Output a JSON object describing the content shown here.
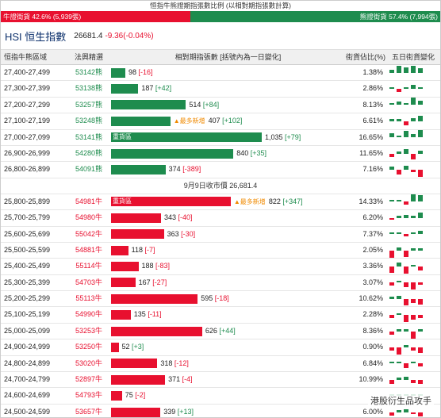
{
  "ratio": {
    "title": "恒指牛熊證期指張數比例 (以相對期指張數計算)",
    "bull_label": "牛證街貨 42.6% (5,939張)",
    "bear_label": "熊證街貨 57.4% (7,994張)",
    "bull_fraction": 0.426
  },
  "index": {
    "name": "HSI 恒生指數",
    "value": "26681.4",
    "change": "-9.36(-0.04%)"
  },
  "columns": {
    "range": "恒指牛熊區域",
    "code": "法興精選",
    "bar": "相對期指張數 [括號內為一日變化]",
    "pct": "街貨佔比(%)",
    "five": "五日街貨變化"
  },
  "separator": "9月9日收市價 26,681.4",
  "colors": {
    "bull": "#e8102f",
    "bear": "#1e8c4e",
    "new": "#f08a00"
  },
  "bear_rows": [
    {
      "range": "27,400-27,499",
      "code": "53142熊",
      "contracts": 98,
      "contracts_text": "98",
      "change": "[-16]",
      "pct": "1.38%",
      "tag": "",
      "heavy": ""
    },
    {
      "range": "27,300-27,399",
      "code": "53138熊",
      "contracts": 187,
      "contracts_text": "187",
      "change": "[+42]",
      "pct": "2.86%",
      "tag": "",
      "heavy": ""
    },
    {
      "range": "27,200-27,299",
      "code": "53257熊",
      "contracts": 514,
      "contracts_text": "514",
      "change": "[+84]",
      "pct": "8.13%",
      "tag": "",
      "heavy": ""
    },
    {
      "range": "27,100-27,199",
      "code": "53248熊",
      "contracts": 407,
      "contracts_text": "407",
      "change": "[+102]",
      "pct": "6.61%",
      "tag": "▲最多新增",
      "heavy": ""
    },
    {
      "range": "27,000-27,099",
      "code": "53141熊",
      "contracts": 1035,
      "contracts_text": "1,035",
      "change": "[+79]",
      "pct": "16.65%",
      "tag": "",
      "heavy": "重貨區"
    },
    {
      "range": "26,900-26,999",
      "code": "54280熊",
      "contracts": 840,
      "contracts_text": "840",
      "change": "[+35]",
      "pct": "11.65%",
      "tag": "",
      "heavy": ""
    },
    {
      "range": "26,800-26,899",
      "code": "54091熊",
      "contracts": 374,
      "contracts_text": "374",
      "change": "[-389]",
      "pct": "7.16%",
      "tag": "",
      "heavy": ""
    }
  ],
  "bull_rows": [
    {
      "range": "25,800-25,899",
      "code": "54981牛",
      "contracts": 822,
      "contracts_text": "822",
      "change": "[+347]",
      "pct": "14.33%",
      "tag": "▲最多新增",
      "heavy": "重貨區"
    },
    {
      "range": "25,700-25,799",
      "code": "54980牛",
      "contracts": 343,
      "contracts_text": "343",
      "change": "[-40]",
      "pct": "6.20%",
      "tag": "",
      "heavy": ""
    },
    {
      "range": "25,600-25,699",
      "code": "55042牛",
      "contracts": 363,
      "contracts_text": "363",
      "change": "[-30]",
      "pct": "7.37%",
      "tag": "",
      "heavy": ""
    },
    {
      "range": "25,500-25,599",
      "code": "54881牛",
      "contracts": 118,
      "contracts_text": "118",
      "change": "[-7]",
      "pct": "2.05%",
      "tag": "",
      "heavy": ""
    },
    {
      "range": "25,400-25,499",
      "code": "55114牛",
      "contracts": 188,
      "contracts_text": "188",
      "change": "[-83]",
      "pct": "3.36%",
      "tag": "",
      "heavy": ""
    },
    {
      "range": "25,300-25,399",
      "code": "54703牛",
      "contracts": 167,
      "contracts_text": "167",
      "change": "[-27]",
      "pct": "3.07%",
      "tag": "",
      "heavy": ""
    },
    {
      "range": "25,200-25,299",
      "code": "55113牛",
      "contracts": 595,
      "contracts_text": "595",
      "change": "[-18]",
      "pct": "10.62%",
      "tag": "",
      "heavy": ""
    },
    {
      "range": "25,100-25,199",
      "code": "54990牛",
      "contracts": 135,
      "contracts_text": "135",
      "change": "[-11]",
      "pct": "2.28%",
      "tag": "",
      "heavy": ""
    },
    {
      "range": "25,000-25,099",
      "code": "53253牛",
      "contracts": 626,
      "contracts_text": "626",
      "change": "[+44]",
      "pct": "8.36%",
      "tag": "",
      "heavy": ""
    },
    {
      "range": "24,900-24,999",
      "code": "53250牛",
      "contracts": 52,
      "contracts_text": "52",
      "change": "[+3]",
      "pct": "0.90%",
      "tag": "",
      "heavy": ""
    },
    {
      "range": "24,800-24,899",
      "code": "53020牛",
      "contracts": 318,
      "contracts_text": "318",
      "change": "[-12]",
      "pct": "6.84%",
      "tag": "",
      "heavy": ""
    },
    {
      "range": "24,700-24,799",
      "code": "52897牛",
      "contracts": 371,
      "contracts_text": "371",
      "change": "[-4]",
      "pct": "10.99%",
      "tag": "",
      "heavy": ""
    },
    {
      "range": "24,600-24,699",
      "code": "54793牛",
      "contracts": 75,
      "contracts_text": "75",
      "change": "[-2]",
      "pct": "",
      "tag": "",
      "heavy": ""
    },
    {
      "range": "24,500-24,599",
      "code": "53657牛",
      "contracts": 339,
      "contracts_text": "339",
      "change": "[+13]",
      "pct": "6.00%",
      "tag": "",
      "heavy": ""
    }
  ],
  "five_day": {
    "bear": [
      [
        2,
        6,
        4,
        5,
        3
      ],
      [
        1,
        -2,
        1,
        3,
        1
      ],
      [
        1,
        2,
        1,
        6,
        3
      ],
      [
        1,
        1,
        -3,
        2,
        4
      ],
      [
        3,
        1,
        5,
        2,
        6
      ],
      [
        -2,
        1,
        3,
        -4,
        2
      ],
      [
        2,
        -3,
        3,
        -1,
        -5
      ]
    ],
    "bull": [
      [
        1,
        1,
        -2,
        6,
        5
      ],
      [
        -1,
        1,
        2,
        1,
        4
      ],
      [
        1,
        1,
        -1,
        1,
        2
      ],
      [
        -7,
        2,
        -5,
        1,
        1
      ],
      [
        -5,
        3,
        -6,
        1,
        -3
      ],
      [
        -2,
        1,
        -3,
        -6,
        -1
      ],
      [
        1,
        2,
        -5,
        -3,
        -4
      ],
      [
        -2,
        1,
        -6,
        -3,
        -2
      ],
      [
        -2,
        1,
        1,
        -6,
        1
      ],
      [
        -2,
        -6,
        1,
        -2,
        -4
      ],
      [
        1,
        1,
        -3,
        1,
        -2
      ],
      [
        -3,
        1,
        2,
        -2,
        -3
      ],
      [
        1,
        1,
        1,
        1,
        1
      ],
      [
        -2,
        1,
        2,
        -1,
        -3
      ]
    ]
  },
  "watermark": "港股衍生品攻手"
}
